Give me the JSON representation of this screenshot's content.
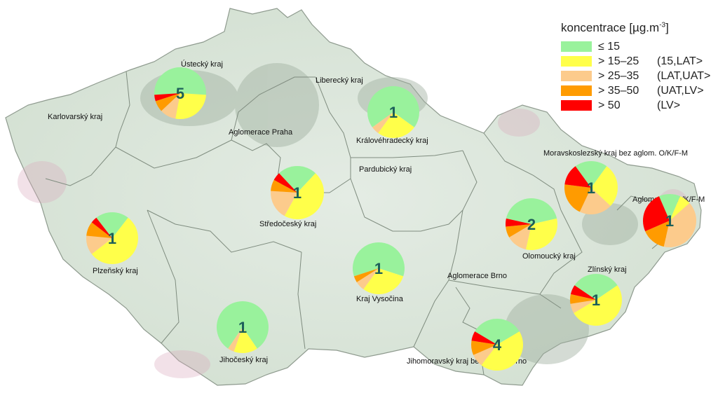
{
  "legend": {
    "title_main": "koncentrace [µg.m",
    "title_sup": "-3",
    "title_end": "]",
    "classes": [
      {
        "range": "≤ 15",
        "limit": "",
        "color": "#99f29c"
      },
      {
        "range": "> 15–25",
        "limit": "(15,LAT>",
        "color": "#ffff4a"
      },
      {
        "range": "> 25–35",
        "limit": "(LAT,UAT>",
        "color": "#fccb8c"
      },
      {
        "range": "> 35–50",
        "limit": "(UAT,LV>",
        "color": "#ff9b00"
      },
      {
        "range": "> 50",
        "limit": "(LV>",
        "color": "#ff0000"
      }
    ]
  },
  "regions": [
    {
      "name": "Ústecký kraj",
      "station_count": "5",
      "shares": [
        0.52,
        0.27,
        0.1,
        0.07,
        0.04
      ]
    },
    {
      "name": "Karlovarský kraj",
      "station_count": "",
      "shares": []
    },
    {
      "name": "Liberecký kraj",
      "station_count": "",
      "shares": []
    },
    {
      "name": "Královéhradecký kraj",
      "station_count": "1",
      "shares": [
        0.7,
        0.25,
        0.05,
        0.0,
        0.0
      ]
    },
    {
      "name": "Aglomerace Praha",
      "station_count": "",
      "shares": []
    },
    {
      "name": "Pardubický kraj",
      "station_count": "",
      "shares": []
    },
    {
      "name": "Moravskoslezský kraj bez aglom. O/K/F-M",
      "station_count": "1",
      "shares": [
        0.2,
        0.27,
        0.2,
        0.2,
        0.13
      ]
    },
    {
      "name": "Středočeský kraj",
      "station_count": "1",
      "shares": [
        0.24,
        0.46,
        0.18,
        0.07,
        0.05
      ]
    },
    {
      "name": "Aglomerace O/K/F-M",
      "station_count": "1",
      "shares": [
        0.13,
        0.07,
        0.4,
        0.15,
        0.25
      ]
    },
    {
      "name": "Plzeňský kraj",
      "station_count": "1",
      "shares": [
        0.21,
        0.54,
        0.12,
        0.09,
        0.04
      ]
    },
    {
      "name": "Olomoucký kraj",
      "station_count": "2",
      "shares": [
        0.43,
        0.32,
        0.13,
        0.07,
        0.05
      ]
    },
    {
      "name": "Kraj Vysočina",
      "station_count": "1",
      "shares": [
        0.6,
        0.3,
        0.06,
        0.04,
        0.0
      ]
    },
    {
      "name": "Aglomerace Brno",
      "station_count": "",
      "shares": []
    },
    {
      "name": "Zlínský kraj",
      "station_count": "1",
      "shares": [
        0.31,
        0.51,
        0.06,
        0.06,
        0.06
      ]
    },
    {
      "name": "Jihočeský kraj",
      "station_count": "1",
      "shares": [
        0.81,
        0.15,
        0.04,
        0.0,
        0.0
      ]
    },
    {
      "name": "Jihomoravský kraj bez aglom. Brno",
      "station_count": "4",
      "shares": [
        0.33,
        0.44,
        0.08,
        0.09,
        0.06
      ]
    }
  ]
}
